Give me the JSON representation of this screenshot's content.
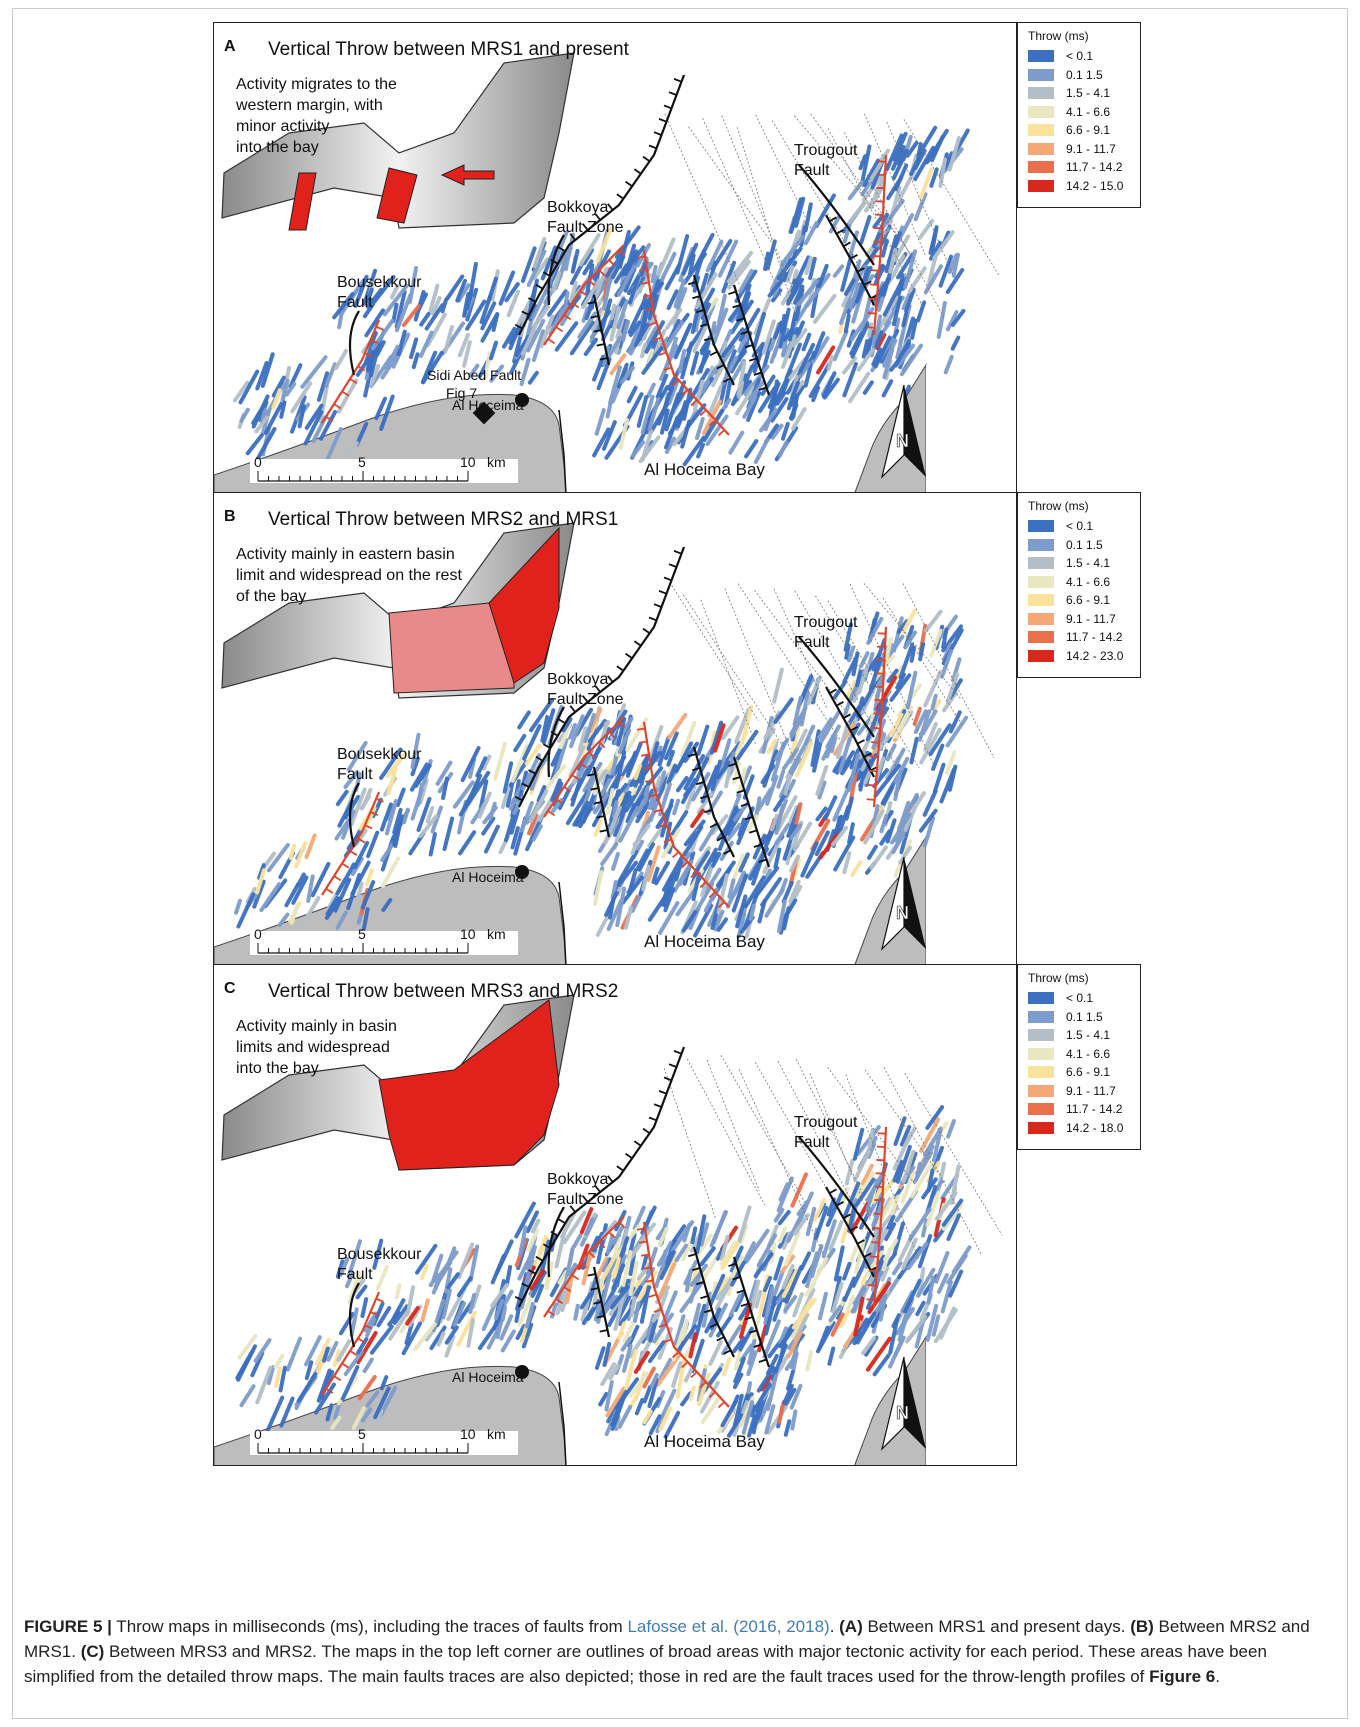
{
  "panels": [
    {
      "letter": "A",
      "title": "Vertical Throw between MRS1 and present",
      "note_lines": [
        "Activity migrates to the",
        "western margin, with",
        "minor activity",
        "into the bay"
      ],
      "labels": {
        "bousekkour": [
          "Bousekkour",
          "Fault"
        ],
        "bokkoya": [
          "Bokkoya",
          "Fault Zone"
        ],
        "trougout": [
          "Trougout",
          "Fault"
        ],
        "sidi": [
          "Sidi Abed Fault",
          "Fig 7"
        ],
        "town": "Al Hoceima",
        "bay": "Al Hoceima Bay",
        "north": "N"
      },
      "scale": [
        "0",
        "5",
        "10",
        "km"
      ],
      "legend": {
        "title": "Throw (ms)",
        "classes": [
          "< 0.1",
          "0.1 1.5",
          "1.5 - 4.1",
          "4.1 - 6.6",
          "6.6 - 9.1",
          "9.1 - 11.7",
          "11.7 - 14.2",
          "14.2 - 15.0"
        ]
      }
    },
    {
      "letter": "B",
      "title": "Vertical Throw between MRS2 and MRS1",
      "note_lines": [
        "Activity mainly in eastern basin",
        "limit and widespread on the rest",
        "of the bay"
      ],
      "labels": {
        "bousekkour": [
          "Bousekkour",
          "Fault"
        ],
        "bokkoya": [
          "Bokkoya",
          "Fault Zone"
        ],
        "trougout": [
          "Trougout",
          "Fault"
        ],
        "sidi": [
          "",
          ""
        ],
        "town": "Al Hoceima",
        "bay": "Al Hoceima Bay",
        "north": "N"
      },
      "scale": [
        "0",
        "5",
        "10",
        "km"
      ],
      "legend": {
        "title": "Throw (ms)",
        "classes": [
          "< 0.1",
          "0.1 1.5",
          "1.5 - 4.1",
          "4.1 - 6.6",
          "6.6 - 9.1",
          "9.1 - 11.7",
          "11.7 - 14.2",
          "14.2 - 23.0"
        ]
      }
    },
    {
      "letter": "C",
      "title": "Vertical Throw between MRS3 and MRS2",
      "note_lines": [
        "Activity mainly in basin",
        "limits and widespread",
        "into the bay"
      ],
      "labels": {
        "bousekkour": [
          "Bousekkour",
          "Fault"
        ],
        "bokkoya": [
          "Bokkoya",
          "Fault Zone"
        ],
        "trougout": [
          "Trougout",
          "Fault"
        ],
        "sidi": [
          "",
          ""
        ],
        "town": "Al Hoceima",
        "bay": "Al Hoceima Bay",
        "north": "N"
      },
      "scale": [
        "0",
        "5",
        "10",
        "km"
      ],
      "legend": {
        "title": "Throw (ms)",
        "classes": [
          "< 0.1",
          "0.1 1.5",
          "1.5 - 4.1",
          "4.1 - 6.6",
          "6.6 - 9.1",
          "9.1 - 11.7",
          "11.7 - 14.2",
          "14.2 - 18.0"
        ]
      }
    }
  ],
  "legend_colors": [
    "#3b6fc0",
    "#7e9ccb",
    "#b3bfc8",
    "#e9e7c0",
    "#fbe29a",
    "#f4a877",
    "#ea6f4d",
    "#d7281e"
  ],
  "fault_colors": {
    "red": "#e0442a",
    "black": "#111111"
  },
  "caption": {
    "label": "FIGURE 5 |",
    "text1": " Throw maps in milliseconds (ms), including the traces of faults from ",
    "cite": "Lafosse et al. (2016, 2018)",
    "text2": ". ",
    "a_label": "(A)",
    "a_text": " Between MRS1 and present days. ",
    "b_label": "(B)",
    "b_text": " Between MRS2 and MRS1. ",
    "c_label": "(C)",
    "c_text": " Between MRS3 and MRS2. The maps in the top left corner are outlines of broad areas with major tectonic activity for each period. These areas have been simplified from the detailed throw maps. The main faults traces are also depicted; those in red are the fault traces used for the throw-length profiles of ",
    "fig_ref": "Figure 6",
    "end": "."
  }
}
